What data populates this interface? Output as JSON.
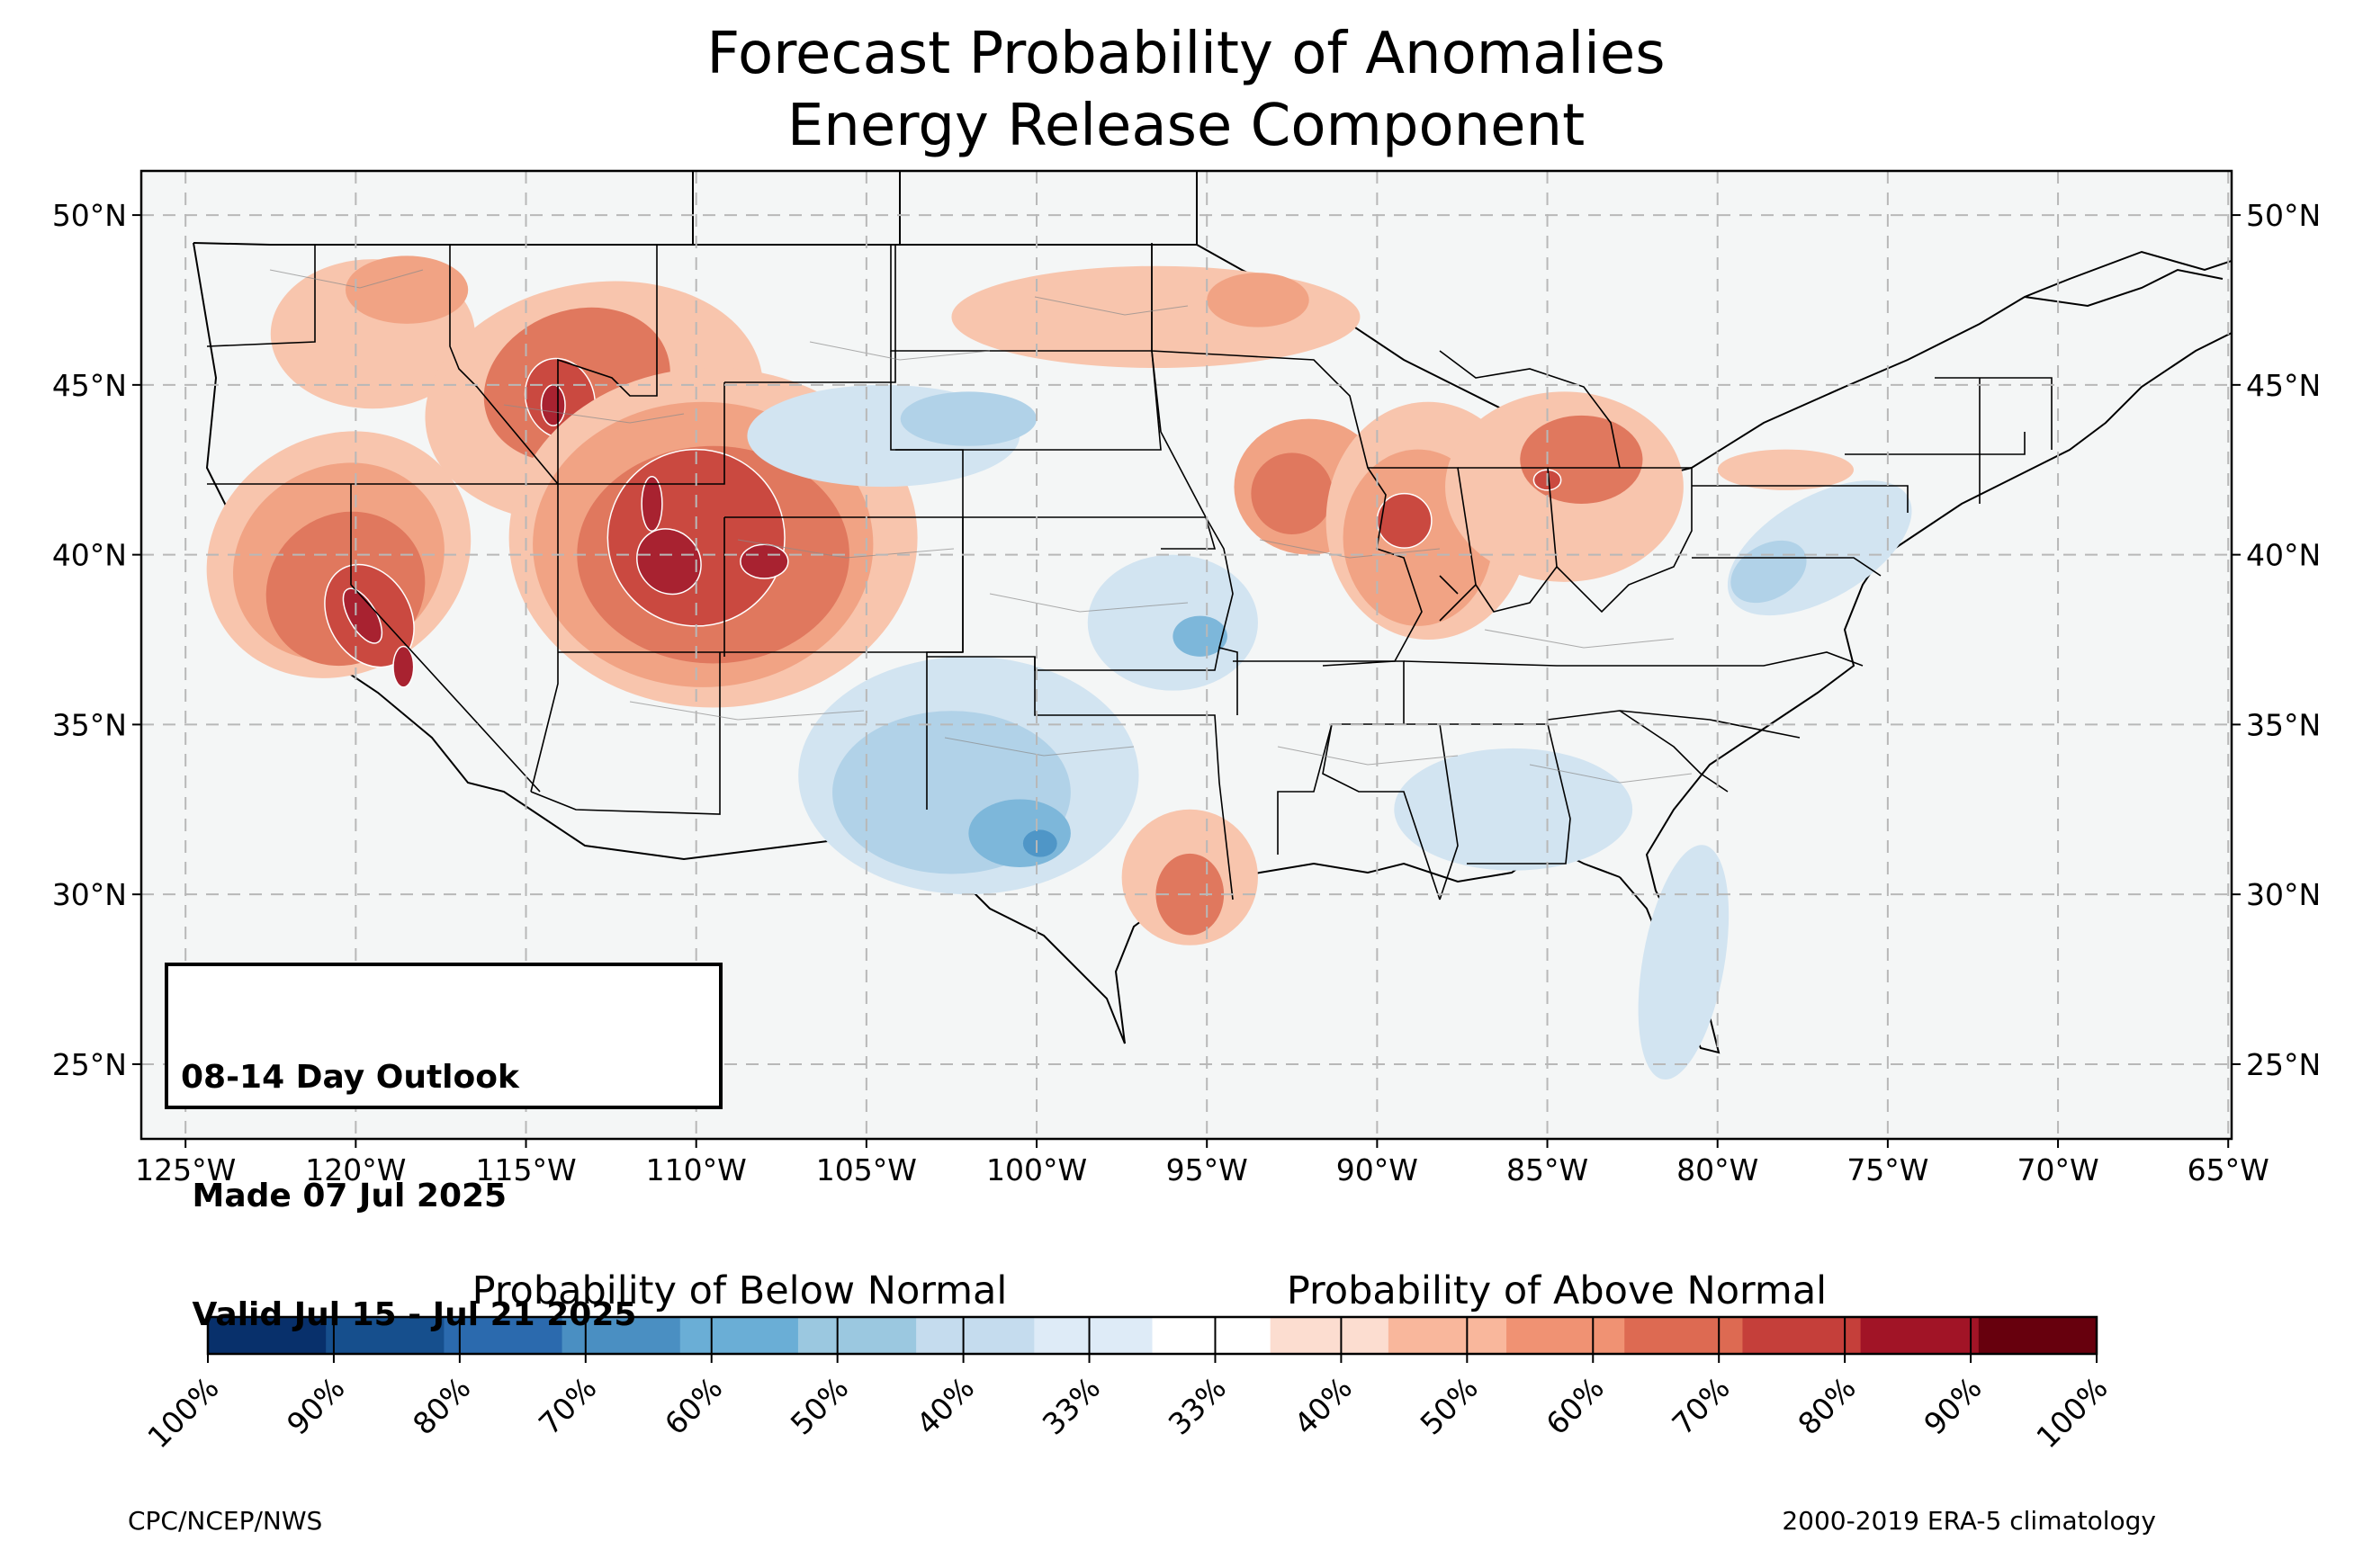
{
  "title": {
    "line1": "Forecast Probability of Anomalies",
    "line2": "Energy Release Component"
  },
  "outlook": {
    "line1": "08-14 Day Outlook",
    "line2": " Made 07 Jul 2025",
    "line3": " Valid Jul 15 - Jul 21 2025"
  },
  "axes": {
    "lon_labels": [
      "125°W",
      "120°W",
      "115°W",
      "110°W",
      "105°W",
      "100°W",
      "95°W",
      "90°W",
      "85°W",
      "80°W",
      "75°W",
      "70°W",
      "65°W"
    ],
    "lat_labels": [
      "50°N",
      "45°N",
      "40°N",
      "35°N",
      "30°N",
      "25°N"
    ],
    "lon_range": [
      -126.3,
      -64.9
    ],
    "lat_range": [
      22.8,
      51.3
    ],
    "grid": true
  },
  "colorbar": {
    "below_title": "Probability of Below Normal",
    "above_title": "Probability of Above Normal",
    "tick_labels": [
      "100%",
      "90%",
      "80%",
      "70%",
      "60%",
      "50%",
      "40%",
      "33%",
      "33%",
      "40%",
      "50%",
      "60%",
      "70%",
      "80%",
      "90%",
      "100%"
    ],
    "colors": [
      "#08306b",
      "#164f8d",
      "#2b6aae",
      "#4a8fc2",
      "#6aaed6",
      "#9bc8e0",
      "#c5dcee",
      "#deebf7",
      "#ffffff",
      "#fcddd0",
      "#f9b79c",
      "#f09273",
      "#dd6a52",
      "#c53f3a",
      "#a11426",
      "#67000d"
    ]
  },
  "map_colors": {
    "background": "#f4f6f6",
    "above_40": "#f8c5ad",
    "above_50": "#f1a384",
    "above_60": "#e0785e",
    "above_70": "#ca4940",
    "above_80": "#a82230",
    "below_40": "#d2e4f1",
    "below_50": "#b1d2e8",
    "below_60": "#7db7da",
    "below_70": "#4f96c7"
  },
  "credits": {
    "left": "CPC/NCEP/NWS",
    "right": "2000-2019 ERA-5 climatology"
  }
}
